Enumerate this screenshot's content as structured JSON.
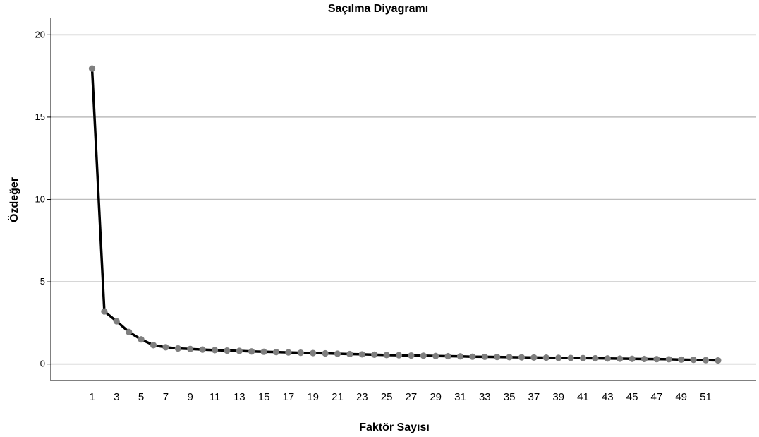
{
  "chart_data": {
    "type": "line",
    "title": "Saçılma Diyagramı",
    "xlabel": "Faktör Sayısı",
    "ylabel": "Özdeğer",
    "x": [
      1,
      2,
      3,
      4,
      5,
      6,
      7,
      8,
      9,
      10,
      11,
      12,
      13,
      14,
      15,
      16,
      17,
      18,
      19,
      20,
      21,
      22,
      23,
      24,
      25,
      26,
      27,
      28,
      29,
      30,
      31,
      32,
      33,
      34,
      35,
      36,
      37,
      38,
      39,
      40,
      41,
      42,
      43,
      44,
      45,
      46,
      47,
      48,
      49,
      50,
      51,
      52
    ],
    "x_tick_labels": [
      "1",
      "3",
      "5",
      "7",
      "9",
      "11",
      "13",
      "15",
      "17",
      "19",
      "21",
      "23",
      "25",
      "27",
      "29",
      "31",
      "33",
      "35",
      "37",
      "39",
      "41",
      "43",
      "45",
      "47",
      "49",
      "51"
    ],
    "series": [
      {
        "values": [
          17.95,
          3.2,
          2.6,
          1.95,
          1.5,
          1.15,
          1.02,
          0.95,
          0.92,
          0.88,
          0.85,
          0.82,
          0.8,
          0.77,
          0.75,
          0.73,
          0.71,
          0.69,
          0.67,
          0.65,
          0.63,
          0.61,
          0.59,
          0.57,
          0.55,
          0.54,
          0.52,
          0.51,
          0.49,
          0.48,
          0.47,
          0.45,
          0.44,
          0.43,
          0.42,
          0.41,
          0.4,
          0.39,
          0.38,
          0.37,
          0.36,
          0.35,
          0.34,
          0.33,
          0.32,
          0.31,
          0.3,
          0.29,
          0.27,
          0.26,
          0.24,
          0.22
        ],
        "line_color": "#000000",
        "marker_color": "#7f7f7f"
      }
    ],
    "ylim": [
      -1,
      21
    ],
    "y_ticks": [
      0,
      5,
      10,
      15,
      20
    ],
    "grid": "horizontal",
    "legend": "none"
  }
}
